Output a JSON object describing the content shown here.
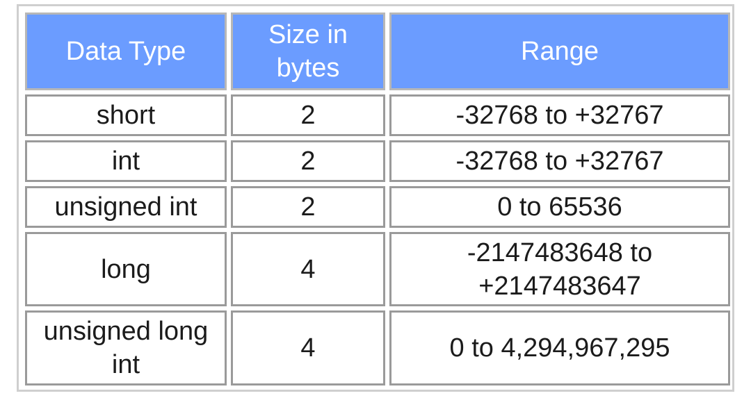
{
  "table": {
    "headers": [
      "Data Type",
      "Size in bytes",
      "Range"
    ],
    "rows": [
      {
        "type": "short",
        "size": "2",
        "range": "-32768 to +32767"
      },
      {
        "type": "int",
        "size": "2",
        "range": "-32768 to +32767"
      },
      {
        "type": "unsigned int",
        "size": "2",
        "range": "0 to 65536"
      },
      {
        "type": "long",
        "size": "4",
        "range": "-2147483648 to +2147483647"
      },
      {
        "type": "unsigned long int",
        "size": "4",
        "range": "0 to 4,294,967,295"
      }
    ]
  },
  "colors": {
    "header_bg": "#6b9cff",
    "header_text": "#ffffff",
    "cell_border": "#9a9a9a",
    "outer_border": "#cfcfcf"
  }
}
